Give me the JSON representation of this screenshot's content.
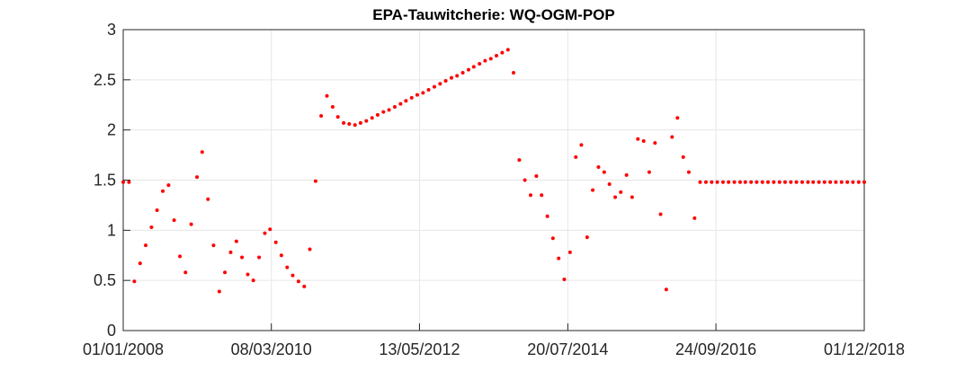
{
  "chart_data": {
    "type": "scatter",
    "title": "EPA-Tauwitcherie: WQ-OGM-POP",
    "x": [
      "01/01/2008",
      "01/02/2008",
      "01/03/2008",
      "01/04/2008",
      "01/05/2008",
      "01/06/2008",
      "01/07/2008",
      "01/08/2008",
      "01/09/2008",
      "01/10/2008",
      "01/11/2008",
      "01/12/2008",
      "01/01/2009",
      "01/02/2009",
      "01/03/2009",
      "01/04/2009",
      "01/05/2009",
      "01/06/2009",
      "01/07/2009",
      "01/08/2009",
      "01/09/2009",
      "01/10/2009",
      "01/11/2009",
      "01/12/2009",
      "01/01/2010",
      "01/02/2010",
      "01/03/2010",
      "01/04/2010",
      "01/05/2010",
      "01/06/2010",
      "01/07/2010",
      "01/08/2010",
      "01/09/2010",
      "01/10/2010",
      "01/11/2010",
      "01/12/2010",
      "01/01/2011",
      "01/02/2011",
      "01/03/2011",
      "01/04/2011",
      "01/05/2011",
      "01/06/2011",
      "01/07/2011",
      "01/08/2011",
      "01/09/2011",
      "01/10/2011",
      "01/11/2011",
      "01/12/2011",
      "01/01/2012",
      "01/02/2012",
      "01/03/2012",
      "01/04/2012",
      "01/05/2012",
      "01/06/2012",
      "01/07/2012",
      "01/08/2012",
      "01/09/2012",
      "01/10/2012",
      "01/11/2012",
      "01/12/2012",
      "01/01/2013",
      "01/02/2013",
      "01/03/2013",
      "01/04/2013",
      "01/05/2013",
      "01/06/2013",
      "01/07/2013",
      "01/08/2013",
      "01/09/2013",
      "01/10/2013",
      "01/11/2013",
      "01/12/2013",
      "01/01/2014",
      "01/02/2014",
      "01/03/2014",
      "01/04/2014",
      "01/05/2014",
      "01/06/2014",
      "01/07/2014",
      "01/08/2014",
      "01/09/2014",
      "01/10/2014",
      "01/11/2014",
      "01/12/2014",
      "01/01/2015",
      "01/02/2015",
      "01/03/2015",
      "01/04/2015",
      "01/05/2015",
      "01/06/2015",
      "01/07/2015",
      "01/08/2015",
      "01/09/2015",
      "01/10/2015",
      "01/11/2015",
      "01/12/2015",
      "01/01/2016",
      "01/02/2016",
      "01/03/2016",
      "01/04/2016",
      "01/05/2016",
      "01/06/2016",
      "01/07/2016",
      "01/08/2016",
      "01/09/2016",
      "01/10/2016",
      "01/11/2016",
      "01/12/2016",
      "01/01/2017",
      "01/02/2017",
      "01/03/2017",
      "01/04/2017",
      "01/05/2017",
      "01/06/2017",
      "01/07/2017",
      "01/08/2017",
      "01/09/2017",
      "01/10/2017",
      "01/11/2017",
      "01/12/2017",
      "01/01/2018",
      "01/02/2018",
      "01/03/2018",
      "01/04/2018",
      "01/05/2018",
      "01/06/2018",
      "01/07/2018",
      "01/08/2018",
      "01/09/2018",
      "01/10/2018",
      "01/11/2018",
      "01/12/2018"
    ],
    "values": [
      1.48,
      1.48,
      0.49,
      0.67,
      0.85,
      1.03,
      1.2,
      1.39,
      1.45,
      1.1,
      0.74,
      0.58,
      1.06,
      1.53,
      1.78,
      1.31,
      0.85,
      0.39,
      0.58,
      0.78,
      0.89,
      0.73,
      0.56,
      0.5,
      0.73,
      0.97,
      1.01,
      0.88,
      0.75,
      0.63,
      0.55,
      0.49,
      0.44,
      0.81,
      1.49,
      2.14,
      2.34,
      2.23,
      2.13,
      2.07,
      2.06,
      2.05,
      2.07,
      2.09,
      2.12,
      2.15,
      2.18,
      2.2,
      2.23,
      2.26,
      2.29,
      2.32,
      2.35,
      2.37,
      2.4,
      2.43,
      2.46,
      2.49,
      2.52,
      2.54,
      2.57,
      2.6,
      2.63,
      2.66,
      2.69,
      2.71,
      2.74,
      2.77,
      2.8,
      2.57,
      1.7,
      1.5,
      1.35,
      1.54,
      1.35,
      1.14,
      0.92,
      0.72,
      0.51,
      0.78,
      1.73,
      1.85,
      0.93,
      1.4,
      1.63,
      1.58,
      1.46,
      1.33,
      1.38,
      1.55,
      1.33,
      1.91,
      1.89,
      1.58,
      1.87,
      1.16,
      0.41,
      1.93,
      2.12,
      1.73,
      1.58,
      1.12,
      1.48,
      1.48,
      1.48,
      1.48,
      1.48,
      1.48,
      1.48,
      1.48,
      1.48,
      1.48,
      1.48,
      1.48,
      1.48,
      1.48,
      1.48,
      1.48,
      1.48,
      1.48,
      1.48,
      1.48,
      1.48,
      1.48,
      1.48,
      1.48,
      1.48,
      1.48,
      1.48,
      1.48,
      1.48,
      1.48
    ],
    "color": "#ff0000",
    "xlim": [
      "01/01/2008",
      "01/12/2018"
    ],
    "xticks": [
      "01/01/2008",
      "08/03/2010",
      "13/05/2012",
      "20/07/2014",
      "24/09/2016",
      "01/12/2018"
    ],
    "ylim": [
      0,
      3
    ],
    "yticks": [
      0,
      0.5,
      1,
      1.5,
      2,
      2.5,
      3
    ],
    "grid": true
  }
}
